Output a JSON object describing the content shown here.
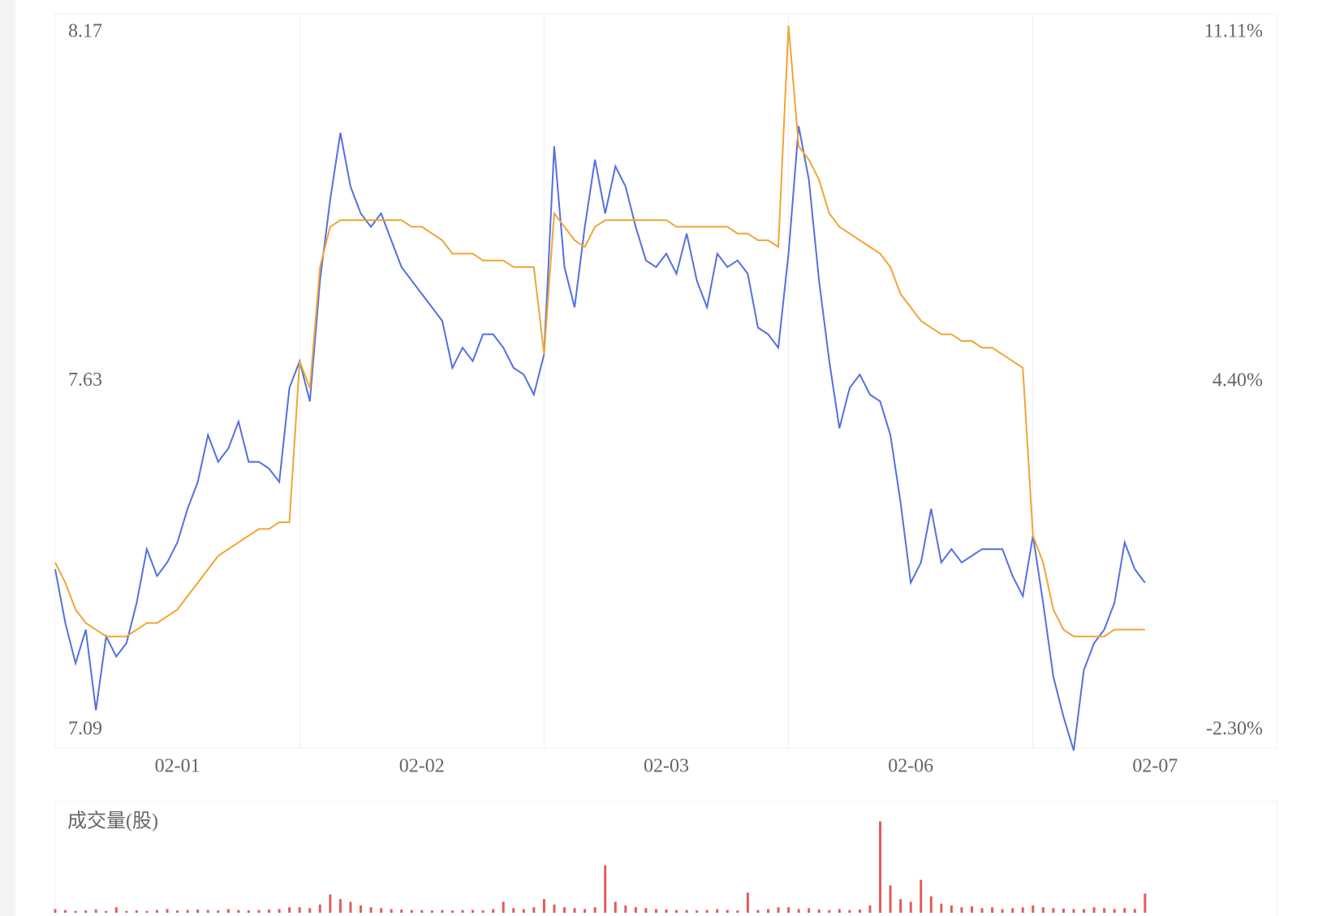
{
  "chart_data": [
    {
      "type": "line",
      "categories": [
        "02-01",
        "02-02",
        "02-03",
        "02-06",
        "02-07"
      ],
      "ylim": [
        7.09,
        8.17
      ],
      "yticks": [
        8.17,
        7.63,
        7.09
      ],
      "y2lim": [
        -2.3,
        11.11
      ],
      "y2ticks": [
        {
          "value": 11.11,
          "label": "11.11%"
        },
        {
          "value": 4.4,
          "label": "4.40%"
        },
        {
          "value": -2.3,
          "label": "-2.30%"
        }
      ],
      "series": [
        {
          "color": "#5470e0",
          "values": [
            [
              7.35,
              7.27,
              7.21,
              7.26,
              7.14,
              7.25,
              7.22,
              7.24,
              7.3,
              7.38,
              7.34,
              7.36,
              7.39,
              7.44,
              7.48,
              7.55,
              7.51,
              7.53,
              7.57,
              7.51,
              7.51,
              7.5,
              7.48,
              7.62
            ],
            [
              7.66,
              7.6,
              7.78,
              7.9,
              8.0,
              7.92,
              7.88,
              7.86,
              7.88,
              7.84,
              7.8,
              7.78,
              7.76,
              7.74,
              7.72,
              7.65,
              7.68,
              7.66,
              7.7,
              7.7,
              7.68,
              7.65,
              7.64,
              7.61
            ],
            [
              7.67,
              7.98,
              7.8,
              7.74,
              7.86,
              7.96,
              7.88,
              7.95,
              7.92,
              7.86,
              7.81,
              7.8,
              7.82,
              7.79,
              7.85,
              7.78,
              7.74,
              7.82,
              7.8,
              7.81,
              7.79,
              7.71,
              7.7,
              7.68
            ],
            [
              7.82,
              8.01,
              7.93,
              7.78,
              7.66,
              7.56,
              7.62,
              7.64,
              7.61,
              7.6,
              7.55,
              7.45,
              7.33,
              7.36,
              7.44,
              7.36,
              7.38,
              7.36,
              7.37,
              7.38,
              7.38,
              7.38,
              7.34,
              7.31
            ],
            [
              7.4,
              7.3,
              7.19,
              7.13,
              7.08,
              7.2,
              7.24,
              7.26,
              7.3,
              7.39,
              7.35,
              7.33
            ]
          ]
        },
        {
          "color": "#f0a535",
          "values": [
            [
              7.36,
              7.33,
              7.29,
              7.27,
              7.26,
              7.25,
              7.25,
              7.25,
              7.26,
              7.27,
              7.27,
              7.28,
              7.29,
              7.31,
              7.33,
              7.35,
              7.37,
              7.38,
              7.39,
              7.4,
              7.41,
              7.41,
              7.42,
              7.42
            ],
            [
              7.66,
              7.62,
              7.8,
              7.86,
              7.87,
              7.87,
              7.87,
              7.87,
              7.87,
              7.87,
              7.87,
              7.86,
              7.86,
              7.85,
              7.84,
              7.82,
              7.82,
              7.82,
              7.81,
              7.81,
              7.81,
              7.8,
              7.8,
              7.8
            ],
            [
              7.67,
              7.88,
              7.86,
              7.84,
              7.83,
              7.86,
              7.87,
              7.87,
              7.87,
              7.87,
              7.87,
              7.87,
              7.87,
              7.86,
              7.86,
              7.86,
              7.86,
              7.86,
              7.86,
              7.85,
              7.85,
              7.84,
              7.84,
              7.83
            ],
            [
              8.16,
              7.98,
              7.96,
              7.93,
              7.88,
              7.86,
              7.85,
              7.84,
              7.83,
              7.82,
              7.8,
              7.76,
              7.74,
              7.72,
              7.71,
              7.7,
              7.7,
              7.69,
              7.69,
              7.68,
              7.68,
              7.67,
              7.66,
              7.65
            ],
            [
              7.4,
              7.36,
              7.29,
              7.26,
              7.25,
              7.25,
              7.25,
              7.25,
              7.26,
              7.26,
              7.26,
              7.26
            ]
          ]
        }
      ]
    },
    {
      "type": "bar",
      "title": "成交量(股)",
      "ylim": [
        0,
        1200000
      ],
      "series": [
        {
          "color": "#e45b5b",
          "values": [
            [
              40000,
              30000,
              20000,
              25000,
              35000,
              20000,
              60000,
              20000,
              25000,
              20000,
              30000,
              40000,
              25000,
              30000,
              35000,
              30000,
              25000,
              40000,
              30000,
              25000,
              30000,
              35000,
              40000,
              60000
            ],
            [
              60000,
              50000,
              90000,
              200000,
              150000,
              120000,
              80000,
              60000,
              50000,
              40000,
              35000,
              30000,
              30000,
              25000,
              30000,
              25000,
              30000,
              30000,
              25000,
              40000,
              120000,
              50000,
              40000,
              60000
            ],
            [
              150000,
              90000,
              60000,
              50000,
              40000,
              60000,
              520000,
              120000,
              80000,
              60000,
              50000,
              40000,
              35000,
              30000,
              30000,
              25000,
              30000,
              40000,
              30000,
              25000,
              220000,
              30000,
              40000,
              60000
            ],
            [
              60000,
              40000,
              50000,
              35000,
              30000,
              40000,
              30000,
              35000,
              80000,
              1000000,
              300000,
              150000,
              120000,
              360000,
              180000,
              100000,
              80000,
              60000,
              70000,
              50000,
              60000,
              40000,
              50000,
              60000
            ],
            [
              80000,
              60000,
              50000,
              45000,
              40000,
              40000,
              60000,
              50000,
              40000,
              50000,
              40000,
              210000
            ]
          ]
        }
      ]
    }
  ]
}
